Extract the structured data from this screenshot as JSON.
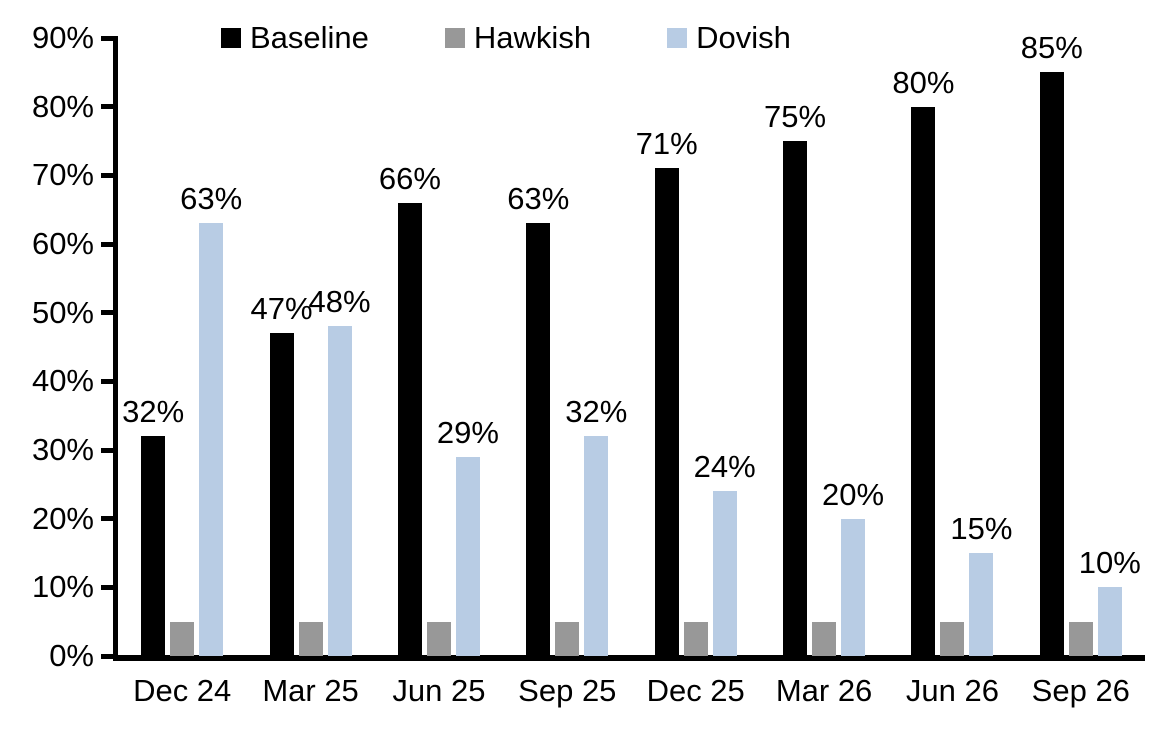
{
  "chart_data": {
    "type": "bar",
    "title": "",
    "xlabel": "",
    "ylabel": "",
    "ylim": [
      0,
      90
    ],
    "ytick_step": 10,
    "ytick_labels": [
      "0%",
      "10%",
      "20%",
      "30%",
      "40%",
      "50%",
      "60%",
      "70%",
      "80%",
      "90%"
    ],
    "grid": false,
    "legend_position": "top",
    "categories": [
      "Dec 24",
      "Mar 25",
      "Jun 25",
      "Sep 25",
      "Dec 25",
      "Mar 26",
      "Jun 26",
      "Sep 26"
    ],
    "series": [
      {
        "name": "Baseline",
        "color": "#000000",
        "values": [
          32,
          47,
          66,
          63,
          71,
          75,
          80,
          85
        ],
        "data_labels": [
          "32%",
          "47%",
          "66%",
          "63%",
          "71%",
          "75%",
          "80%",
          "85%"
        ],
        "show_labels": true
      },
      {
        "name": "Hawkish",
        "color": "#989898",
        "values": [
          5,
          5,
          5,
          5,
          5,
          5,
          5,
          5
        ],
        "data_labels": [],
        "show_labels": false
      },
      {
        "name": "Dovish",
        "color": "#b8cce4",
        "values": [
          63,
          48,
          29,
          32,
          24,
          20,
          15,
          10
        ],
        "data_labels": [
          "63%",
          "48%",
          "29%",
          "32%",
          "24%",
          "20%",
          "15%",
          "10%"
        ],
        "show_labels": true
      }
    ]
  }
}
